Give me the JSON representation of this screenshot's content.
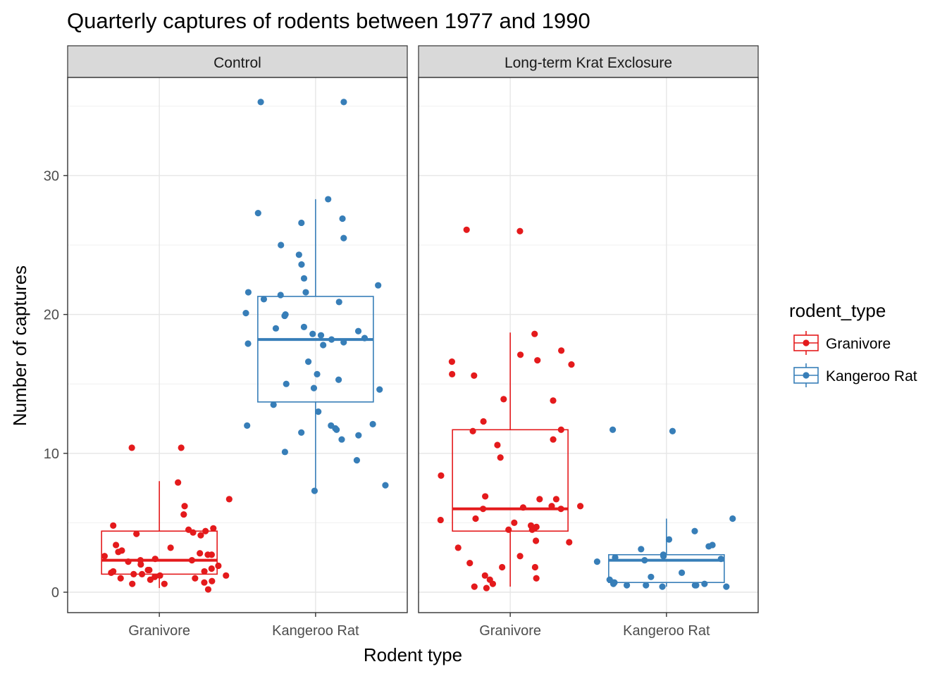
{
  "chart_data": {
    "type": "boxplot",
    "title": "Quarterly captures of rodents between 1977 and 1990",
    "xlabel": "Rodent type",
    "ylabel": "Number of captures",
    "ylim": [
      -1.5,
      37
    ],
    "yticks": [
      0,
      10,
      20,
      30
    ],
    "categories": [
      "Granivore",
      "Kangeroo Rat"
    ],
    "colors": {
      "Granivore": "#E41A1C",
      "Kangeroo Rat": "#377EB8"
    },
    "legend": {
      "title": "rodent_type",
      "placement": "right",
      "entries": [
        "Granivore",
        "Kangeroo Rat"
      ]
    },
    "grid": true,
    "panels": [
      {
        "label": "Control",
        "boxes": [
          {
            "category": "Granivore",
            "whisker_low": 0.3,
            "q1": 1.3,
            "median": 2.3,
            "q3": 4.4,
            "whisker_high": 8.0,
            "points": [
              10.4,
              10.4,
              7.9,
              6.7,
              6.2,
              5.6,
              4.8,
              4.6,
              4.5,
              4.4,
              4.3,
              4.2,
              4.1,
              3.4,
              3.2,
              3.0,
              2.9,
              2.8,
              2.7,
              2.7,
              2.6,
              2.4,
              2.3,
              2.3,
              2.2,
              2.0,
              1.9,
              1.7,
              1.6,
              1.6,
              1.5,
              1.5,
              1.4,
              1.3,
              1.3,
              1.2,
              1.2,
              1.1,
              1.0,
              1.0,
              0.9,
              0.8,
              0.7,
              0.6,
              0.6,
              0.2
            ]
          },
          {
            "category": "Kangeroo Rat",
            "whisker_low": 7.3,
            "q1": 13.7,
            "median": 18.2,
            "q3": 21.3,
            "whisker_high": 28.3,
            "points": [
              35.3,
              35.3,
              28.3,
              27.3,
              26.9,
              26.6,
              25.5,
              25.0,
              24.3,
              23.6,
              22.6,
              22.1,
              21.6,
              21.6,
              21.4,
              21.1,
              20.9,
              20.1,
              20.0,
              19.9,
              19.1,
              19.0,
              18.8,
              18.6,
              18.5,
              18.3,
              18.2,
              18.0,
              17.9,
              17.8,
              16.6,
              15.7,
              15.3,
              15.0,
              14.7,
              14.6,
              13.5,
              13.0,
              12.1,
              12.0,
              12.0,
              11.8,
              11.7,
              11.5,
              11.3,
              11.0,
              10.1,
              9.5,
              7.7,
              7.3
            ]
          }
        ]
      },
      {
        "label": "Long-term Krat Exclosure",
        "boxes": [
          {
            "category": "Granivore",
            "whisker_low": 0.4,
            "q1": 4.4,
            "median": 6.0,
            "q3": 11.7,
            "whisker_high": 18.7,
            "points": [
              26.1,
              26.0,
              18.6,
              17.4,
              17.1,
              16.7,
              16.6,
              16.4,
              15.7,
              15.6,
              13.9,
              13.8,
              12.3,
              11.7,
              11.6,
              11.0,
              10.6,
              9.7,
              8.4,
              6.9,
              6.7,
              6.7,
              6.2,
              6.2,
              6.1,
              6.0,
              6.0,
              5.2,
              5.3,
              5.0,
              4.8,
              4.7,
              4.6,
              4.5,
              4.5,
              3.6,
              3.7,
              3.2,
              2.6,
              2.1,
              1.8,
              1.8,
              1.2,
              1.0,
              0.9,
              0.6,
              0.4,
              0.3
            ]
          },
          {
            "category": "Kangeroo Rat",
            "whisker_low": 0.4,
            "q1": 0.7,
            "median": 2.3,
            "q3": 2.7,
            "whisker_high": 5.3,
            "points": [
              11.7,
              11.6,
              5.3,
              4.4,
              3.8,
              3.4,
              3.3,
              3.1,
              2.7,
              2.6,
              2.5,
              2.4,
              2.3,
              2.2,
              1.4,
              1.1,
              0.9,
              0.7,
              0.7,
              0.6,
              0.6,
              0.5,
              0.5,
              0.5,
              0.5,
              0.4,
              0.4
            ]
          }
        ]
      }
    ]
  }
}
